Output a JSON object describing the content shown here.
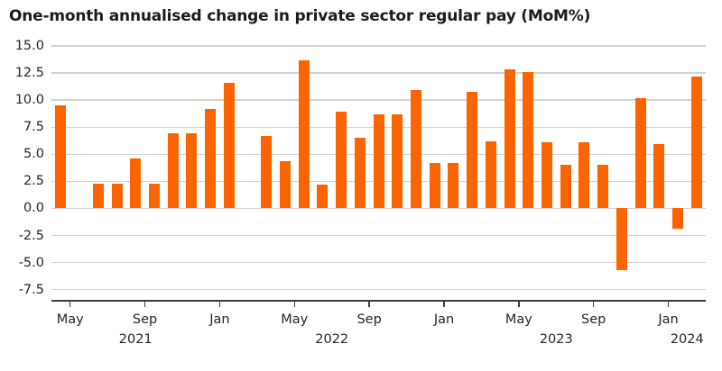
{
  "title": "One-month annualised change in private sector regular pay (MoM%)",
  "colors": {
    "bar": "#fb6400",
    "grid": "#d2d2d2",
    "axis": "#3d3d3d",
    "text": "#262626",
    "background": "#ffffff"
  },
  "chart_data": {
    "type": "bar",
    "title": "One-month annualised change in private sector regular pay (MoM%)",
    "xlabel": "",
    "ylabel": "",
    "ylim": [
      -8.4,
      15.0
    ],
    "grid": true,
    "legend": "none",
    "categories": [
      "Apr 2021",
      "May 2021",
      "Jun 2021",
      "Jul 2021",
      "Aug 2021",
      "Sep 2021",
      "Oct 2021",
      "Nov 2021",
      "Dec 2021",
      "Jan 2022",
      "Feb 2022",
      "Mar 2022",
      "Apr 2022",
      "May 2022",
      "Jun 2022",
      "Jul 2022",
      "Aug 2022",
      "Sep 2022",
      "Oct 2022",
      "Nov 2022",
      "Dec 2022",
      "Jan 2023",
      "Feb 2023",
      "Mar 2023",
      "Apr 2023",
      "May 2023",
      "Jun 2023",
      "Jul 2023",
      "Aug 2023",
      "Sep 2023",
      "Oct 2023",
      "Nov 2023",
      "Dec 2023",
      "Jan 2024",
      "Feb 2024"
    ],
    "values": [
      9.5,
      0,
      2.3,
      2.3,
      4.6,
      2.3,
      6.9,
      6.9,
      9.2,
      11.6,
      0,
      6.7,
      4.4,
      13.7,
      2.2,
      8.9,
      6.5,
      8.7,
      8.7,
      10.9,
      4.2,
      4.2,
      10.8,
      6.2,
      12.8,
      12.6,
      6.1,
      4.0,
      6.1,
      4.0,
      -5.7,
      10.2,
      5.9,
      -1.9,
      12.2
    ],
    "yticks": [
      {
        "value": 15.0,
        "label": "15.0"
      },
      {
        "value": 12.5,
        "label": "12.5"
      },
      {
        "value": 10.0,
        "label": "10.0"
      },
      {
        "value": 7.5,
        "label": "7.5"
      },
      {
        "value": 5.0,
        "label": "5.0"
      },
      {
        "value": 2.5,
        "label": "2.5"
      },
      {
        "value": 0.0,
        "label": "0.0"
      },
      {
        "value": -2.5,
        "label": "-2.5"
      },
      {
        "value": -5.0,
        "label": "-5.0"
      },
      {
        "value": -7.5,
        "label": "-7.5"
      }
    ],
    "xticks": [
      {
        "label": "May",
        "slot": 1
      },
      {
        "label": "Sep",
        "slot": 5
      },
      {
        "label": "Jan",
        "slot": 9
      },
      {
        "label": "May",
        "slot": 13
      },
      {
        "label": "Sep",
        "slot": 17
      },
      {
        "label": "Jan",
        "slot": 21
      },
      {
        "label": "May",
        "slot": 25
      },
      {
        "label": "Sep",
        "slot": 29
      },
      {
        "label": "Jan",
        "slot": 33
      }
    ],
    "year_labels": [
      {
        "label": "2021",
        "center_slot": 4.5
      },
      {
        "label": "2022",
        "center_slot": 15
      },
      {
        "label": "2023",
        "center_slot": 27
      },
      {
        "label": "2024",
        "center_slot": 34
      }
    ]
  }
}
